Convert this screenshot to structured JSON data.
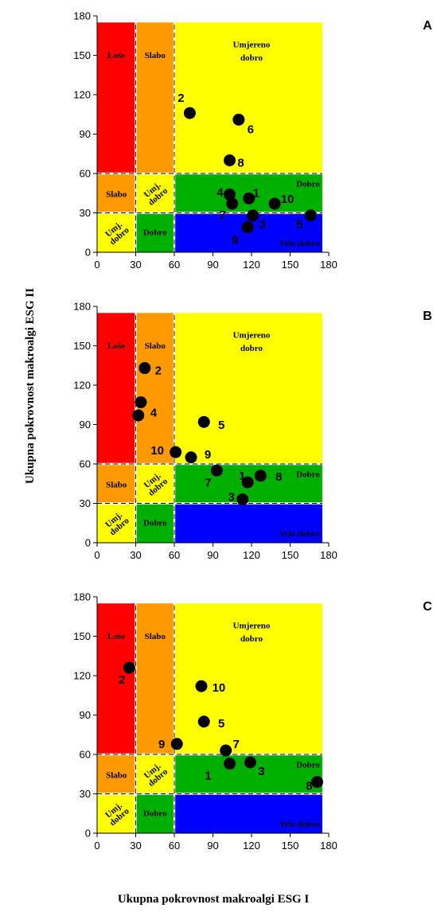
{
  "ylabel": "Ukupna pokrovnost makroalgi ESG II",
  "xlabel": "Ukupna pokrovnost makroalgi ESG I",
  "zone_labels": {
    "lose": "Loše",
    "slabo": "Slabo",
    "umjereno": [
      "Umjereno",
      "dobro"
    ],
    "umj_dobro": [
      "Umj.",
      "dobro"
    ],
    "dobro": "Dobro",
    "vrlo_dobro": "Vrlo dobro"
  },
  "zone_colors": {
    "red": "#ff0000",
    "orange": "#ff9900",
    "yellow": "#ffff00",
    "green": "#00b000",
    "blue": "#0000ff"
  },
  "chart_data": [
    {
      "type": "scatter",
      "panel": "A",
      "xlim": [
        0,
        180
      ],
      "ylim": [
        0,
        180
      ],
      "xticks": [
        0,
        30,
        60,
        90,
        120,
        150,
        180
      ],
      "yticks": [
        0,
        30,
        60,
        90,
        120,
        150,
        180
      ],
      "points": [
        {
          "label": "1",
          "x": 118,
          "y": 41
        },
        {
          "label": "2",
          "x": 72,
          "y": 106
        },
        {
          "label": "3",
          "x": 121,
          "y": 28
        },
        {
          "label": "4",
          "x": 103,
          "y": 44
        },
        {
          "label": "5",
          "x": 166,
          "y": 28
        },
        {
          "label": "6",
          "x": 110,
          "y": 101
        },
        {
          "label": "7",
          "x": 105,
          "y": 37
        },
        {
          "label": "8",
          "x": 103,
          "y": 70
        },
        {
          "label": "9",
          "x": 117,
          "y": 19
        },
        {
          "label": "10",
          "x": 138,
          "y": 37
        }
      ]
    },
    {
      "type": "scatter",
      "panel": "B",
      "xlim": [
        0,
        180
      ],
      "ylim": [
        0,
        180
      ],
      "xticks": [
        0,
        30,
        60,
        90,
        120,
        150,
        180
      ],
      "yticks": [
        0,
        30,
        60,
        90,
        120,
        150,
        180
      ],
      "points": [
        {
          "label": "1",
          "x": 117,
          "y": 46
        },
        {
          "label": "2",
          "x": 37,
          "y": 133
        },
        {
          "label": "3",
          "x": 113,
          "y": 33
        },
        {
          "label": "4",
          "x": 34,
          "y": 107
        },
        {
          "label": "",
          "x": 32,
          "y": 97
        },
        {
          "label": "5",
          "x": 83,
          "y": 92
        },
        {
          "label": "7",
          "x": 93,
          "y": 55
        },
        {
          "label": "8",
          "x": 127,
          "y": 51
        },
        {
          "label": "9",
          "x": 73,
          "y": 65
        },
        {
          "label": "10",
          "x": 61,
          "y": 69
        }
      ]
    },
    {
      "type": "scatter",
      "panel": "C",
      "xlim": [
        0,
        180
      ],
      "ylim": [
        0,
        180
      ],
      "xticks": [
        0,
        30,
        60,
        90,
        120,
        150,
        180
      ],
      "yticks": [
        0,
        30,
        60,
        90,
        120,
        150,
        180
      ],
      "points": [
        {
          "label": "1",
          "x": 103,
          "y": 53
        },
        {
          "label": "2",
          "x": 25,
          "y": 126
        },
        {
          "label": "3",
          "x": 119,
          "y": 54
        },
        {
          "label": "5",
          "x": 83,
          "y": 85
        },
        {
          "label": "7",
          "x": 100,
          "y": 63
        },
        {
          "label": "8",
          "x": 171,
          "y": 39
        },
        {
          "label": "9",
          "x": 62,
          "y": 68
        },
        {
          "label": "10",
          "x": 81,
          "y": 112
        }
      ]
    }
  ]
}
